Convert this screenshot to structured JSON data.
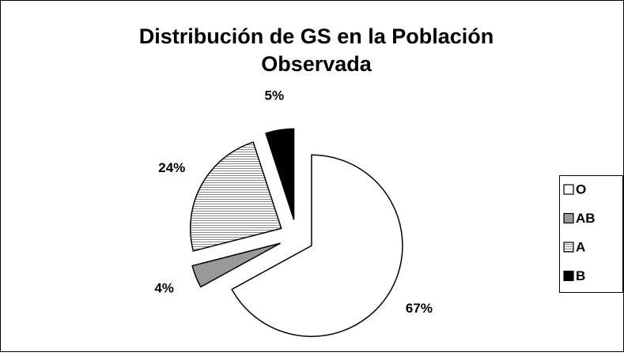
{
  "chart_data": {
    "type": "pie",
    "title": "Distribución de GS en la Población Observada",
    "categories": [
      "O",
      "AB",
      "A",
      "B"
    ],
    "values": [
      67,
      4,
      24,
      5
    ],
    "value_labels": [
      "67%",
      "4%",
      "24%",
      "5%"
    ],
    "colors": [
      "#ffffff",
      "#999999",
      "#e0e0e0",
      "#000000"
    ],
    "legend": "right"
  }
}
